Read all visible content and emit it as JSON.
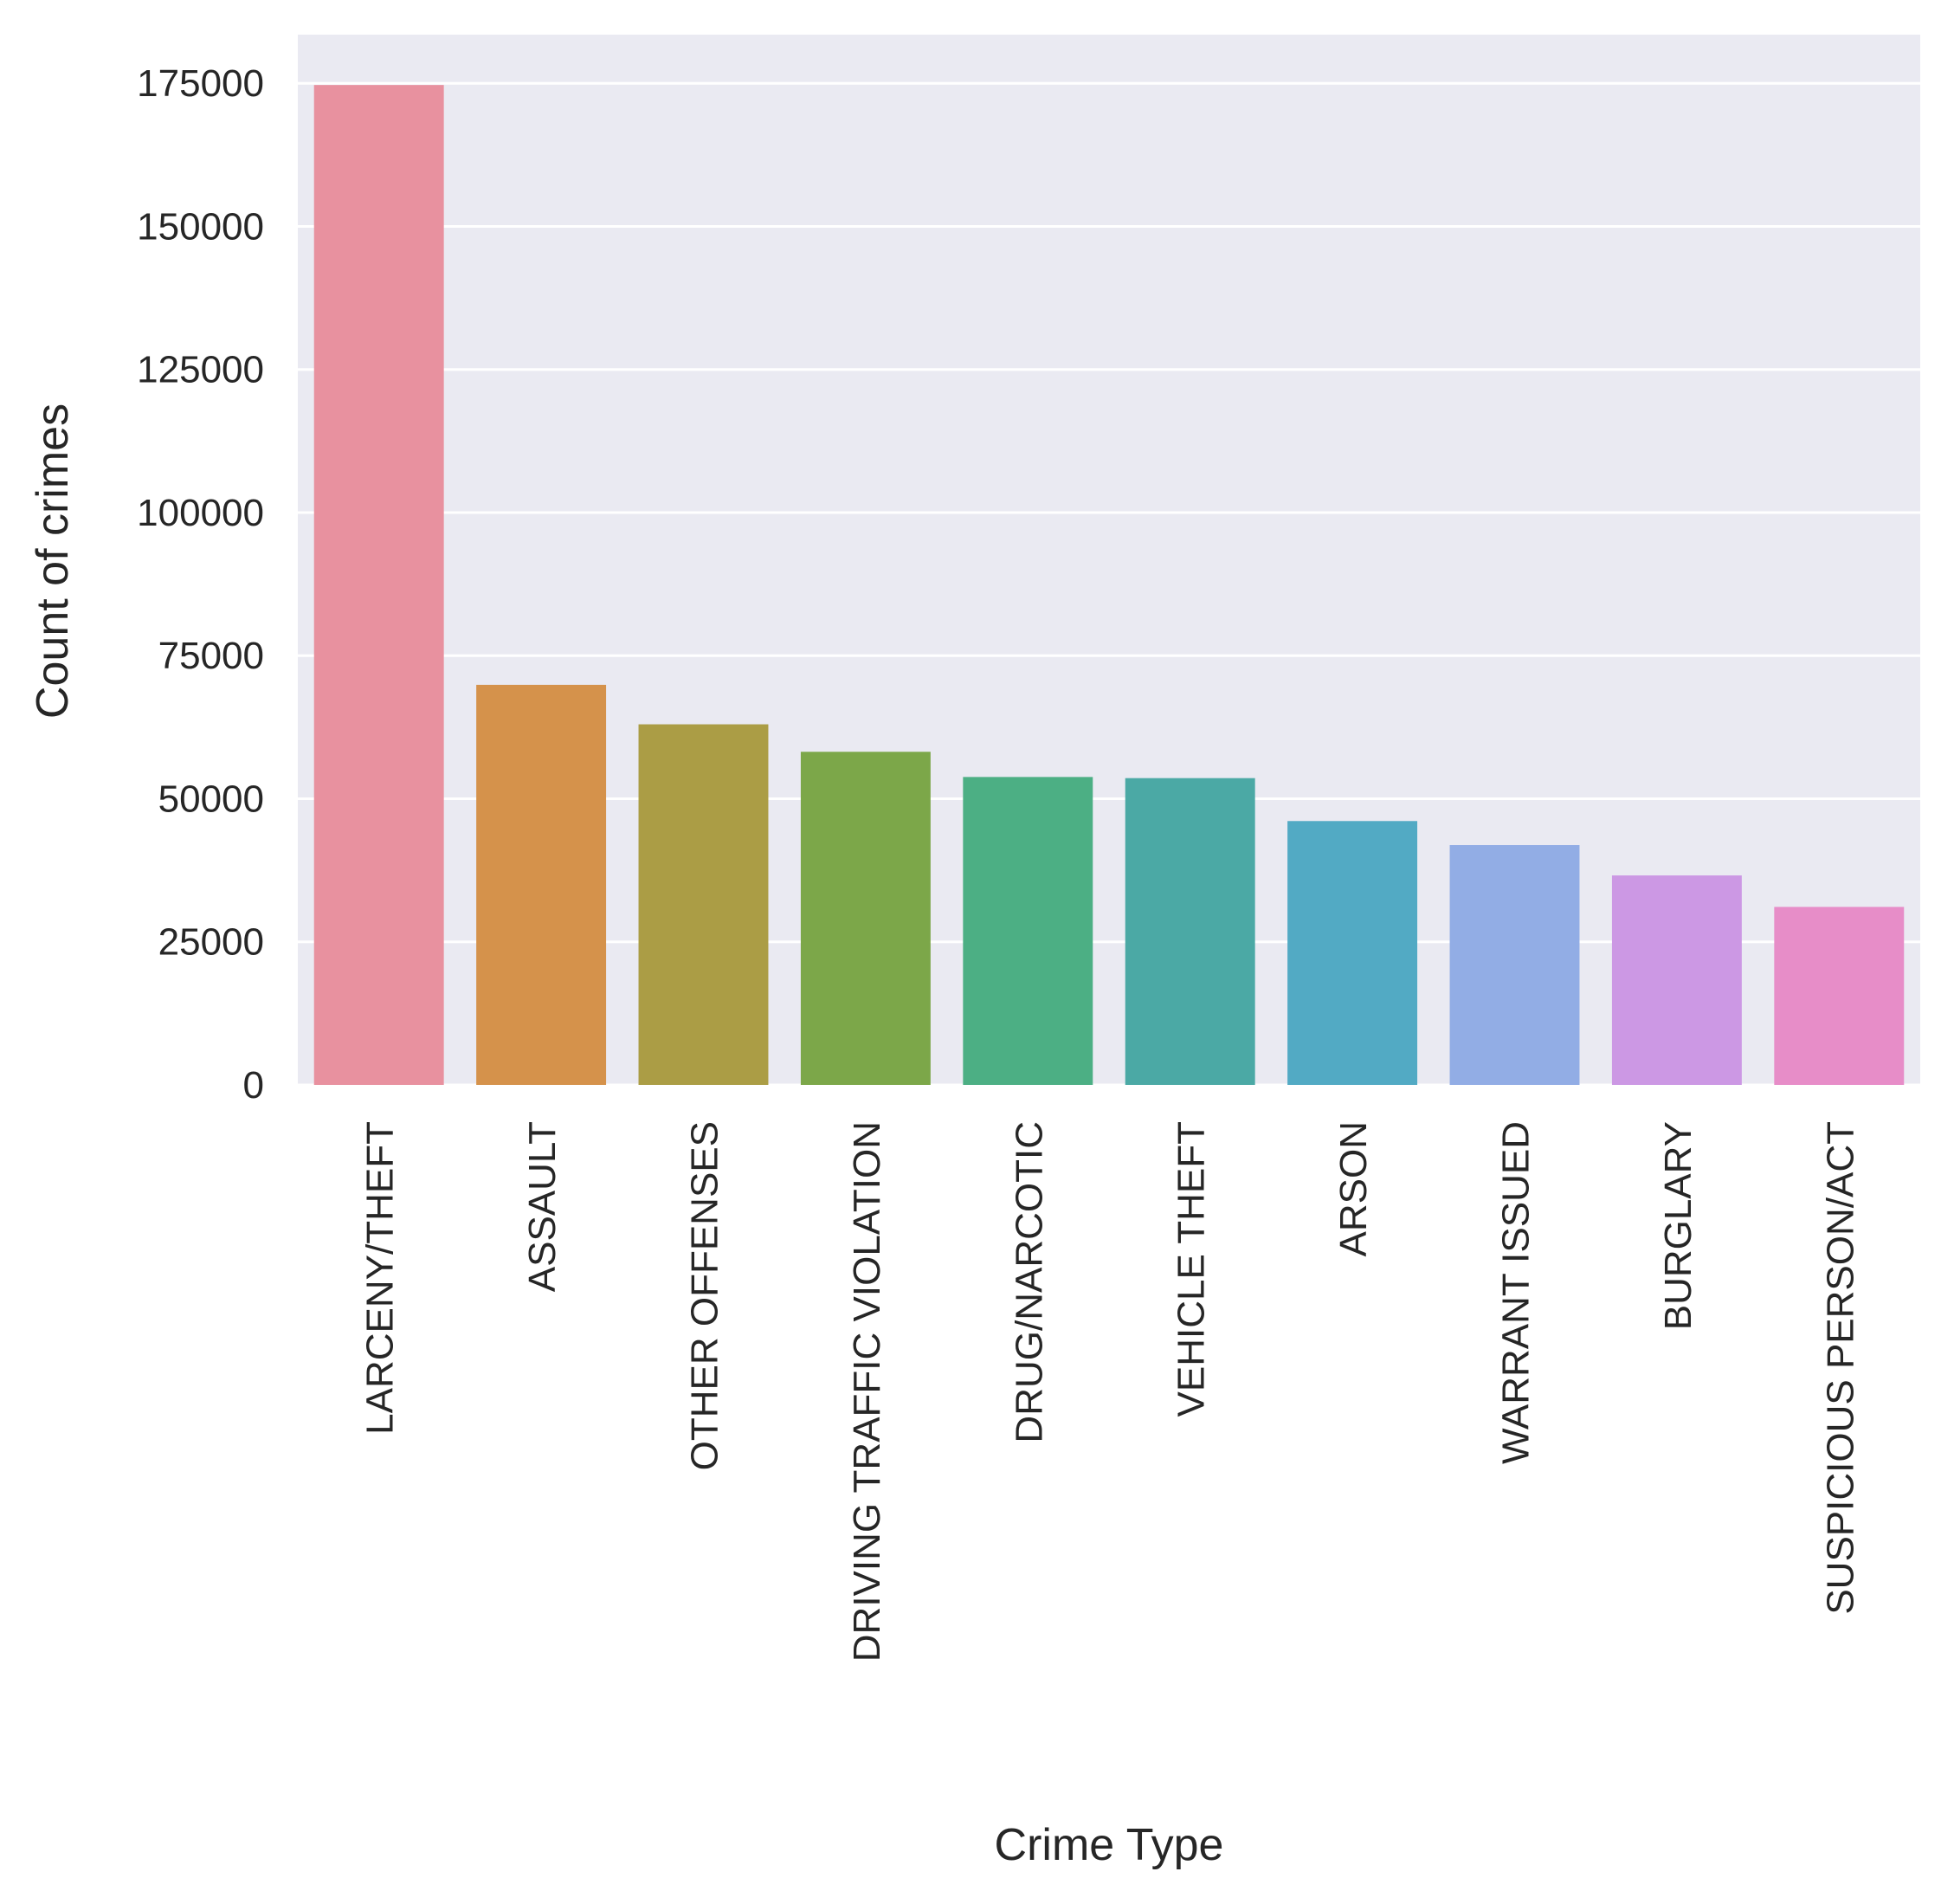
{
  "chart_data": {
    "type": "bar",
    "title": "",
    "xlabel": "Crime Type",
    "ylabel": "Count of crimes",
    "ylim": [
      0,
      183500
    ],
    "yticks": [
      0,
      25000,
      50000,
      75000,
      100000,
      125000,
      150000,
      175000
    ],
    "grid": true,
    "background": "#EAEAF2",
    "categories": [
      "LARCENY/THEFT",
      "ASSAULT",
      "OTHER OFFENSES",
      "DRIVING TRAFFIC VIOLATION",
      "DRUG/NARCOTIC",
      "VEHICLE THEFT",
      "ARSON",
      "WARRANT ISSUED",
      "BURGLARY",
      "SUSPICIOUS PERSON/ACT"
    ],
    "values": [
      174700,
      69900,
      63000,
      58200,
      53800,
      53600,
      46100,
      41900,
      36600,
      31100
    ],
    "colors": [
      "#E8919F",
      "#D5924B",
      "#AB9D45",
      "#7CA749",
      "#4CAF84",
      "#4BA9A5",
      "#52AAC4",
      "#92ADE5",
      "#CC98E4",
      "#E78DC8"
    ]
  }
}
